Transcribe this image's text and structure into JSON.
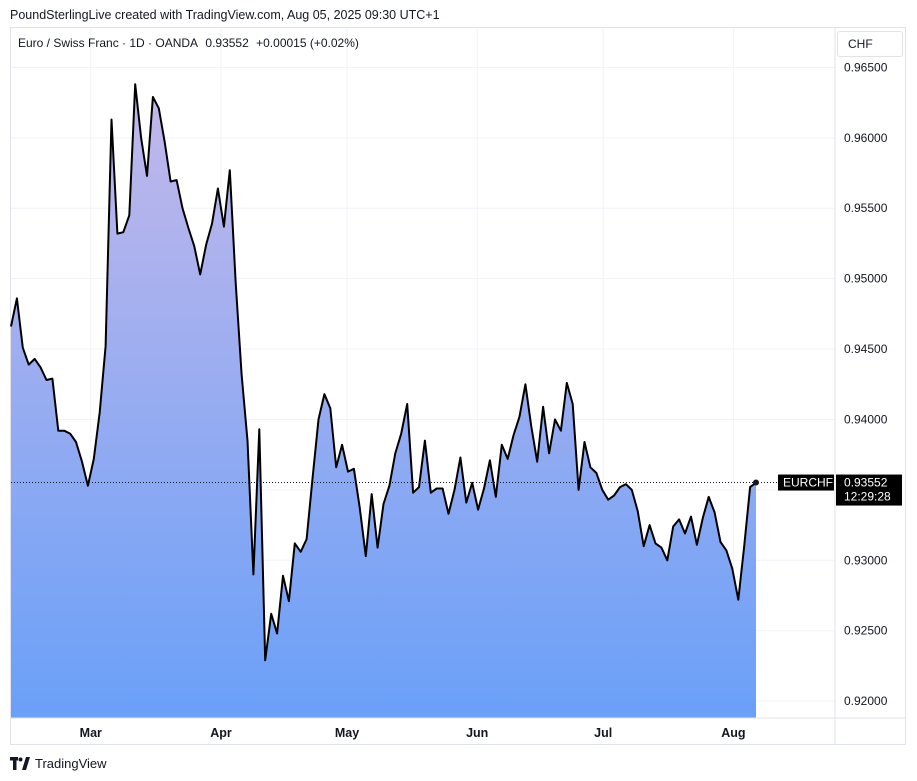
{
  "header": {
    "credit": "PoundSterlingLive created with TradingView.com, Aug 05, 2025 09:30 UTC+1"
  },
  "legend": {
    "symbol": "Euro / Swiss Franc · 1D · OANDA",
    "last": "0.93552",
    "change": "+0.00015 (+0.02%)"
  },
  "currency_button": "CHF",
  "footer": {
    "brand": "TradingView"
  },
  "price_tag": {
    "symbol": "EURCHF",
    "price": "0.93552",
    "countdown": "12:29:28"
  },
  "colors": {
    "line": "#000000",
    "fill_top": "#c4b8ea",
    "fill_bottom": "#6aa0f8",
    "grid": "#f0f3fa",
    "tag_bg": "#000000"
  },
  "chart_data": {
    "type": "area",
    "ylim": [
      0.9188,
      0.9678
    ],
    "y_ticks": [
      "0.96500",
      "0.96000",
      "0.95500",
      "0.95000",
      "0.94500",
      "0.94000",
      "0.93500",
      "0.93000",
      "0.92500",
      "0.92000"
    ],
    "x_ticks": [
      {
        "label": "Mar",
        "index": 19
      },
      {
        "label": "Apr",
        "index": 50
      },
      {
        "label": "May",
        "index": 80
      },
      {
        "label": "Jun",
        "index": 111
      },
      {
        "label": "Jul",
        "index": 141
      },
      {
        "label": "Aug",
        "index": 172
      }
    ],
    "x_range": [
      0,
      196
    ],
    "last_value": 0.93552,
    "values": [
      0.9466,
      0.9486,
      0.9451,
      0.9439,
      0.9443,
      0.9437,
      0.9428,
      0.9429,
      0.9392,
      0.9392,
      0.939,
      0.9384,
      0.937,
      0.9353,
      0.9372,
      0.9405,
      0.9452,
      0.9613,
      0.9532,
      0.9533,
      0.9545,
      0.9638,
      0.96,
      0.9573,
      0.9629,
      0.9621,
      0.9597,
      0.9569,
      0.957,
      0.955,
      0.9536,
      0.9523,
      0.9503,
      0.9524,
      0.9539,
      0.9564,
      0.9537,
      0.9577,
      0.9497,
      0.9432,
      0.9385,
      0.929,
      0.9393,
      0.9229,
      0.9262,
      0.9248,
      0.9289,
      0.9271,
      0.9312,
      0.9306,
      0.9315,
      0.9358,
      0.94,
      0.9418,
      0.9408,
      0.9366,
      0.9382,
      0.9363,
      0.9365,
      0.9337,
      0.9303,
      0.9347,
      0.9309,
      0.934,
      0.9353,
      0.9376,
      0.939,
      0.9411,
      0.9348,
      0.9352,
      0.9385,
      0.9348,
      0.9351,
      0.9351,
      0.9333,
      0.935,
      0.9373,
      0.9341,
      0.9355,
      0.9336,
      0.9351,
      0.9371,
      0.9345,
      0.9382,
      0.9372,
      0.9389,
      0.9402,
      0.9425,
      0.9395,
      0.937,
      0.9409,
      0.9376,
      0.94,
      0.9392,
      0.9426,
      0.9411,
      0.935,
      0.9384,
      0.9366,
      0.9362,
      0.935,
      0.9343,
      0.9346,
      0.9352,
      0.9354,
      0.935,
      0.9335,
      0.931,
      0.9325,
      0.9312,
      0.9309,
      0.93,
      0.9324,
      0.9329,
      0.9319,
      0.9331,
      0.9311,
      0.933,
      0.9345,
      0.9334,
      0.9313,
      0.9307,
      0.9294,
      0.9272,
      0.931,
      0.9352,
      0.9355
    ]
  }
}
